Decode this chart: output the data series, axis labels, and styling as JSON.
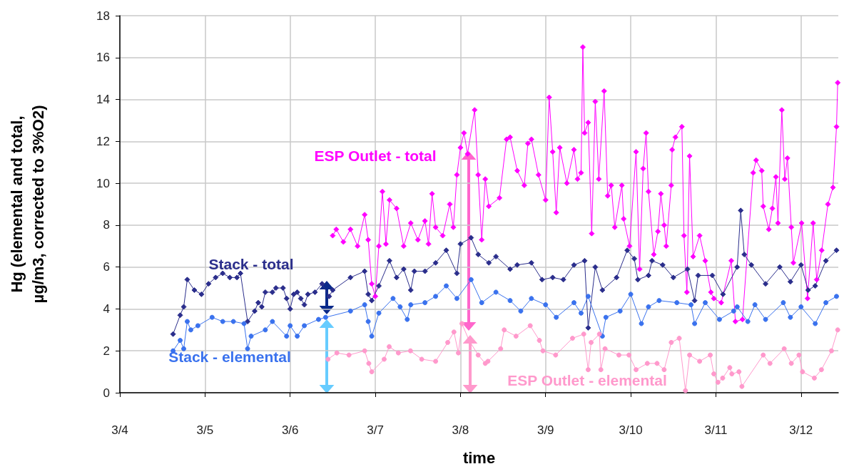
{
  "chart_data": {
    "type": "line",
    "xlabel": "time",
    "ylabel": "Hg (elemental and total, µg/m3, corrected to 3%O2)",
    "xlim": [
      "--03-04",
      "--03-12T10:30"
    ],
    "xticks": [
      {
        "value": "--03-04",
        "label": "3/4"
      },
      {
        "value": "--03-05",
        "label": "3/5"
      },
      {
        "value": "--03-06",
        "label": "3/6"
      },
      {
        "value": "--03-07",
        "label": "3/7"
      },
      {
        "value": "--03-08",
        "label": "3/8"
      },
      {
        "value": "--03-09",
        "label": "3/9"
      },
      {
        "value": "--03-10",
        "label": "3/10"
      },
      {
        "value": "--03-11",
        "label": "3/11"
      },
      {
        "value": "--03-12",
        "label": "3/12"
      }
    ],
    "ylim": [
      0,
      18
    ],
    "yticks": [
      0,
      2,
      4,
      6,
      8,
      10,
      12,
      14,
      16,
      18
    ],
    "grid": true,
    "series": [
      {
        "name": "ESP Outlet - total",
        "color": "#ff00ff",
        "marker": "diamond",
        "x": [
          "--03-06T12:00",
          "--03-06T13:00",
          "--03-06T15:00",
          "--03-06T17:00",
          "--03-06T19:00",
          "--03-06T21:00",
          "--03-06T22:00",
          "--03-06T23:00",
          "--03-07T00:00",
          "--03-07T01:00",
          "--03-07T02:00",
          "--03-07T03:00",
          "--03-07T04:00",
          "--03-07T06:00",
          "--03-07T08:00",
          "--03-07T10:00",
          "--03-07T12:00",
          "--03-07T14:00",
          "--03-07T15:00",
          "--03-07T16:00",
          "--03-07T17:00",
          "--03-07T19:00",
          "--03-07T21:00",
          "--03-07T22:00",
          "--03-07T23:00",
          "--03-08T00:00",
          "--03-08T01:00",
          "--03-08T02:00",
          "--03-08T04:00",
          "--03-08T05:00",
          "--03-08T06:00",
          "--03-08T07:00",
          "--03-08T08:00",
          "--03-08T11:00",
          "--03-08T13:00",
          "--03-08T14:00",
          "--03-08T16:00",
          "--03-08T18:00",
          "--03-08T19:00",
          "--03-08T20:00",
          "--03-08T22:00",
          "--03-09T00:00",
          "--03-09T01:00",
          "--03-09T02:00",
          "--03-09T03:00",
          "--03-09T04:00",
          "--03-09T06:00",
          "--03-09T08:00",
          "--03-09T09:00",
          "--03-09T10:00",
          "--03-09T10:30",
          "--03-09T11:00",
          "--03-09T12:00",
          "--03-09T13:00",
          "--03-09T14:00",
          "--03-09T15:00",
          "--03-09T16:30",
          "--03-09T17:30",
          "--03-09T18:30",
          "--03-09T19:30",
          "--03-09T21:30",
          "--03-09T22:00",
          "--03-09T23:40",
          "--03-10T01:30",
          "--03-10T02:30",
          "--03-10T03:30",
          "--03-10T04:20",
          "--03-10T05:00",
          "--03-10T06:30",
          "--03-10T07:40",
          "--03-10T08:30",
          "--03-10T09:25",
          "--03-10T10:00",
          "--03-10T11:25",
          "--03-10T11:40",
          "--03-10T12:35",
          "--03-10T14:25",
          "--03-10T15:00",
          "--03-10T15:50",
          "--03-10T16:35",
          "--03-10T17:35",
          "--03-10T19:25",
          "--03-10T21:00",
          "--03-10T22:35",
          "--03-10T23:25",
          "--03-11T01:30",
          "--03-11T04:20",
          "--03-11T05:30",
          "--03-11T07:30",
          "--03-11T10:30",
          "--03-11T11:20",
          "--03-11T12:55",
          "--03-11T13:20",
          "--03-11T14:55",
          "--03-11T15:55",
          "--03-11T16:55",
          "--03-11T17:30",
          "--03-11T18:35",
          "--03-11T19:25",
          "--03-11T20:10",
          "--03-11T21:15",
          "--03-11T21:50",
          "--03-12T00:10",
          "--03-12T01:50",
          "--03-12T03:25",
          "--03-12T04:25",
          "--03-12T05:50",
          "--03-12T07:35",
          "--03-12T09:00",
          "--03-12T10:00",
          "--03-12T10:20"
        ],
        "values": [
          7.5,
          7.8,
          7.2,
          7.8,
          7.0,
          8.5,
          7.3,
          5.2,
          4.6,
          7.0,
          9.6,
          7.1,
          9.2,
          8.8,
          7.0,
          8.1,
          7.3,
          8.2,
          7.1,
          9.5,
          7.9,
          7.5,
          9.0,
          7.9,
          10.4,
          11.7,
          12.4,
          11.4,
          13.5,
          10.4,
          7.3,
          10.2,
          8.9,
          9.3,
          12.1,
          12.2,
          10.6,
          9.9,
          11.9,
          12.1,
          10.4,
          9.2,
          14.1,
          11.5,
          8.6,
          11.7,
          10.0,
          11.6,
          10.2,
          10.5,
          16.5,
          12.4,
          12.9,
          7.6,
          13.9,
          10.2,
          14.4,
          9.4,
          9.9,
          7.9,
          9.9,
          8.3,
          7.0,
          11.5,
          5.9,
          10.7,
          12.4,
          9.6,
          6.6,
          7.7,
          9.5,
          8.0,
          7.0,
          9.9,
          11.6,
          12.2,
          12.7,
          7.5,
          4.8,
          11.3,
          6.5,
          7.5,
          6.3,
          4.8,
          4.5,
          4.3,
          6.3,
          3.4,
          3.5,
          10.5,
          11.1,
          10.6,
          8.9,
          7.8,
          8.8,
          10.3,
          8.1,
          13.5,
          10.2,
          11.2,
          7.9,
          6.2,
          8.1,
          4.5,
          8.1,
          5.4,
          6.8,
          9.0,
          9.8,
          12.7,
          14.8
        ]
      },
      {
        "name": "Stack - total",
        "color": "#2b2e8c",
        "marker": "diamond",
        "x": [
          "--03-04T15:00",
          "--03-04T17:00",
          "--03-04T18:00",
          "--03-04T19:00",
          "--03-04T21:00",
          "--03-04T23:00",
          "--03-05T01:00",
          "--03-05T03:00",
          "--03-05T05:00",
          "--03-05T07:00",
          "--03-05T09:00",
          "--03-05T10:00",
          "--03-05T12:00",
          "--03-05T14:00",
          "--03-05T15:00",
          "--03-05T16:00",
          "--03-05T17:00",
          "--03-05T19:00",
          "--03-05T20:00",
          "--03-05T22:00",
          "--03-05T23:00",
          "--03-06T00:00",
          "--03-06T01:00",
          "--03-06T02:00",
          "--03-06T03:00",
          "--03-06T04:00",
          "--03-06T05:00",
          "--03-06T07:00",
          "--03-06T09:00",
          "--03-06T11:00",
          "--03-06T12:00",
          "--03-06T17:00",
          "--03-06T21:00",
          "--03-06T22:00",
          "--03-06T23:00",
          "--03-07T01:00",
          "--03-07T04:00",
          "--03-07T06:00",
          "--03-07T08:00",
          "--03-07T10:00",
          "--03-07T11:00",
          "--03-07T14:00",
          "--03-07T17:00",
          "--03-07T20:00",
          "--03-07T23:00",
          "--03-08T00:00",
          "--03-08T03:00",
          "--03-08T05:00",
          "--03-08T08:00",
          "--03-08T10:00",
          "--03-08T14:00",
          "--03-08T16:00",
          "--03-08T20:00",
          "--03-08T23:00",
          "--03-09T02:00",
          "--03-09T05:00",
          "--03-09T08:00",
          "--03-09T11:00",
          "--03-09T12:00",
          "--03-09T14:00",
          "--03-09T16:00",
          "--03-09T20:00",
          "--03-09T23:00",
          "--03-10T01:00",
          "--03-10T02:00",
          "--03-10T05:00",
          "--03-10T06:00",
          "--03-10T09:00",
          "--03-10T12:00",
          "--03-10T16:00",
          "--03-10T18:00",
          "--03-10T19:00",
          "--03-10T23:00",
          "--03-11T02:00",
          "--03-11T06:00",
          "--03-11T07:00",
          "--03-11T08:00",
          "--03-11T10:00",
          "--03-11T14:00",
          "--03-11T18:00",
          "--03-11T21:00",
          "--03-12T00:00",
          "--03-12T02:00",
          "--03-12T04:00",
          "--03-12T07:00",
          "--03-12T10:00"
        ],
        "values": [
          2.8,
          3.7,
          4.1,
          5.4,
          4.9,
          4.7,
          5.2,
          5.5,
          5.7,
          5.5,
          5.5,
          5.7,
          3.4,
          3.9,
          4.3,
          4.1,
          4.8,
          4.8,
          5.0,
          5.0,
          4.5,
          4.0,
          4.7,
          4.8,
          4.5,
          4.2,
          4.7,
          4.8,
          5.2,
          4.6,
          4.9,
          5.5,
          5.8,
          4.7,
          4.4,
          5.1,
          6.3,
          5.5,
          5.9,
          4.9,
          5.8,
          5.8,
          6.2,
          6.8,
          5.7,
          7.1,
          7.4,
          6.6,
          6.2,
          6.5,
          5.9,
          6.1,
          6.2,
          5.4,
          5.5,
          5.4,
          6.1,
          6.3,
          3.1,
          6.0,
          4.9,
          5.5,
          6.8,
          6.4,
          5.4,
          5.6,
          6.3,
          6.1,
          5.5,
          5.9,
          4.4,
          5.6,
          5.6,
          4.7,
          6.0,
          8.7,
          6.6,
          6.1,
          5.2,
          6.0,
          5.3,
          6.1,
          4.9,
          5.1,
          6.3,
          6.8
        ]
      },
      {
        "name": "Stack - elemental",
        "color": "#3a72ee",
        "marker": "circle",
        "x": [
          "--03-04T15:00",
          "--03-04T17:00",
          "--03-04T18:00",
          "--03-04T19:00",
          "--03-04T20:00",
          "--03-04T22:00",
          "--03-05T02:00",
          "--03-05T05:00",
          "--03-05T08:00",
          "--03-05T11:00",
          "--03-05T12:00",
          "--03-05T13:00",
          "--03-05T17:00",
          "--03-05T19:00",
          "--03-05T23:00",
          "--03-06T00:00",
          "--03-06T02:00",
          "--03-06T04:00",
          "--03-06T08:00",
          "--03-06T10:00",
          "--03-06T17:00",
          "--03-06T21:00",
          "--03-06T22:00",
          "--03-06T23:00",
          "--03-07T01:00",
          "--03-07T05:00",
          "--03-07T07:00",
          "--03-07T09:00",
          "--03-07T10:00",
          "--03-07T14:00",
          "--03-07T17:00",
          "--03-07T20:00",
          "--03-07T23:00",
          "--03-08T03:00",
          "--03-08T06:00",
          "--03-08T10:00",
          "--03-08T14:00",
          "--03-08T17:00",
          "--03-08T20:00",
          "--03-09T00:00",
          "--03-09T03:00",
          "--03-09T08:00",
          "--03-09T10:00",
          "--03-09T12:00",
          "--03-09T16:00",
          "--03-09T17:00",
          "--03-09T21:00",
          "--03-10T00:00",
          "--03-10T03:00",
          "--03-10T05:00",
          "--03-10T08:00",
          "--03-10T13:00",
          "--03-10T17:00",
          "--03-10T18:00",
          "--03-10T21:00",
          "--03-11T01:00",
          "--03-11T05:00",
          "--03-11T06:00",
          "--03-11T09:00",
          "--03-11T11:00",
          "--03-11T14:00",
          "--03-11T19:00",
          "--03-11T21:00",
          "--03-12T00:00",
          "--03-12T04:00",
          "--03-12T07:00",
          "--03-12T10:00"
        ],
        "values": [
          2.0,
          2.5,
          2.1,
          3.4,
          3.0,
          3.2,
          3.6,
          3.4,
          3.4,
          3.3,
          2.1,
          2.7,
          3.0,
          3.4,
          2.7,
          3.2,
          2.7,
          3.2,
          3.5,
          3.6,
          3.9,
          4.2,
          3.4,
          2.7,
          3.8,
          4.5,
          4.1,
          3.5,
          4.2,
          4.3,
          4.6,
          5.1,
          4.5,
          5.4,
          4.3,
          4.8,
          4.4,
          3.9,
          4.5,
          4.2,
          3.6,
          4.3,
          3.8,
          4.6,
          2.7,
          3.6,
          3.9,
          4.7,
          3.3,
          4.1,
          4.4,
          4.3,
          4.2,
          3.3,
          4.3,
          3.5,
          3.9,
          4.1,
          3.4,
          4.2,
          3.5,
          4.3,
          3.6,
          4.1,
          3.3,
          4.3,
          4.6
        ]
      },
      {
        "name": "ESP Outlet - elemental",
        "color": "#ff99cc",
        "marker": "circle",
        "x": [
          "--03-06T10:40",
          "--03-06T13:10",
          "--03-06T16:35",
          "--03-06T21:00",
          "--03-06T22:10",
          "--03-06T23:00",
          "--03-07T02:30",
          "--03-07T03:55",
          "--03-07T06:30",
          "--03-07T09:55",
          "--03-07T13:05",
          "--03-07T17:00",
          "--03-07T20:25",
          "--03-07T22:10",
          "--03-07T23:25",
          "--03-08T00:25",
          "--03-08T02:25",
          "--03-08T05:00",
          "--03-08T07:00",
          "--03-08T07:45",
          "--03-08T11:20",
          "--03-08T12:20",
          "--03-08T15:40",
          "--03-08T19:40",
          "--03-08T22:15",
          "--03-08T23:15",
          "--03-09T02:50",
          "--03-09T07:35",
          "--03-09T10:45",
          "--03-09T12:00",
          "--03-09T12:50",
          "--03-09T15:10",
          "--03-09T15:35",
          "--03-09T16:45",
          "--03-09T20:40",
          "--03-09T23:30",
          "--03-10T01:30",
          "--03-10T04:40",
          "--03-10T07:25",
          "--03-10T09:25",
          "--03-10T11:25",
          "--03-10T13:40",
          "--03-10T15:25",
          "--03-10T16:35",
          "--03-10T19:25",
          "--03-10T22:25",
          "--03-10T23:25",
          "--03-11T00:35",
          "--03-11T01:55",
          "--03-11T03:55",
          "--03-11T04:30",
          "--03-11T06:30",
          "--03-11T07:20",
          "--03-11T13:20",
          "--03-11T15:15",
          "--03-11T19:15",
          "--03-11T21:15",
          "--03-11T23:25",
          "--03-12T00:25",
          "--03-12T03:45",
          "--03-12T05:45",
          "--03-12T08:35",
          "--03-12T10:20"
        ],
        "values": [
          1.6,
          1.9,
          1.8,
          2.0,
          1.4,
          1.0,
          1.6,
          2.2,
          1.9,
          2.0,
          1.6,
          1.5,
          2.4,
          2.9,
          1.9,
          3.3,
          2.5,
          1.8,
          1.4,
          1.5,
          2.1,
          3.0,
          2.7,
          3.2,
          2.5,
          2.0,
          1.8,
          2.6,
          2.8,
          1.1,
          2.4,
          2.8,
          1.1,
          2.1,
          1.8,
          1.8,
          1.1,
          1.4,
          1.4,
          1.1,
          2.4,
          2.6,
          0.1,
          1.8,
          1.5,
          1.8,
          0.9,
          0.5,
          0.7,
          1.2,
          0.9,
          1.0,
          0.3,
          1.8,
          1.4,
          2.1,
          1.4,
          1.8,
          1.0,
          0.7,
          1.1,
          2.0,
          3.0
        ]
      }
    ]
  }
}
